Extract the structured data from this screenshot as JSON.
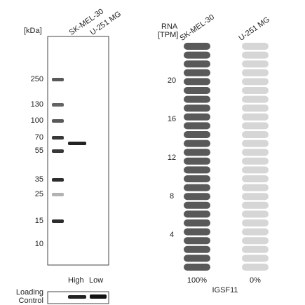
{
  "blot": {
    "unit": "[kDa]",
    "lanes": [
      "SK-MEL-30",
      "U-251 MG"
    ],
    "markers": [
      "250",
      "130",
      "100",
      "70",
      "55",
      "35",
      "25",
      "15",
      "10"
    ],
    "levels": [
      "High",
      "Low"
    ],
    "loading_control": [
      "Loading",
      "Control"
    ]
  },
  "rna": {
    "axis_label": [
      "RNA",
      "[TPM]"
    ],
    "samples": [
      "SK-MEL-30",
      "U-251 MG"
    ],
    "ticks": [
      20,
      16,
      12,
      8,
      4
    ],
    "percents": [
      "100%",
      "0%"
    ],
    "gene": "IGSF11"
  }
}
